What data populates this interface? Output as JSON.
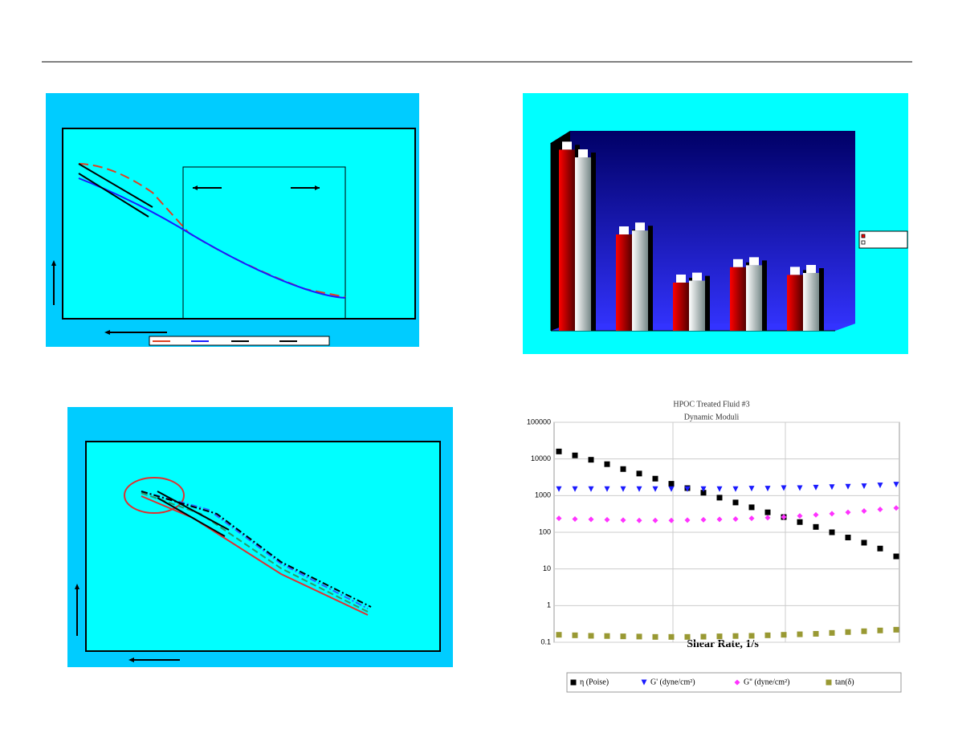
{
  "chart_data": [
    {
      "type": "bar3d",
      "categories": [
        null,
        null,
        null,
        null,
        null
      ],
      "series": [
        {
          "color": "#ff0000",
          "values": [
            4.7,
            2.5,
            1.25,
            1.65,
            1.45
          ]
        },
        {
          "color": "#ffffff",
          "values": [
            4.5,
            2.6,
            1.3,
            1.7,
            1.5
          ]
        }
      ],
      "ylim": [
        0,
        5
      ],
      "grid": true,
      "legend": "right"
    },
    {
      "type": "scatter",
      "title": "HPOC Treated Fluid #3",
      "subtitle": "Dynamic Moduli",
      "x_label": "Shear Rate, 1/s",
      "categories": [
        null,
        null,
        null,
        null,
        null,
        null,
        null,
        null,
        null,
        null,
        null,
        null,
        null,
        null,
        null,
        null,
        null,
        null,
        null,
        null,
        null,
        null
      ],
      "log": true,
      "ylim": [
        0.1,
        100000
      ],
      "yticks": [
        0.1,
        1,
        10,
        100,
        1000,
        10000,
        100000
      ],
      "grid": true,
      "legend": "bottom",
      "series": [
        {
          "name": "η (Poise)",
          "color": "#000000",
          "marker": "square",
          "values": [
            16000,
            12500,
            9500,
            7200,
            5300,
            4000,
            2900,
            2100,
            1600,
            1200,
            880,
            650,
            480,
            350,
            260,
            190,
            140,
            100,
            72,
            52,
            36,
            22
          ]
        },
        {
          "name": "G' (dyne/cm²)",
          "color": "#1a1aff",
          "marker": "triangle-down",
          "values": [
            1500,
            1500,
            1500,
            1500,
            1500,
            1500,
            1500,
            1500,
            1500,
            1500,
            1500,
            1500,
            1550,
            1550,
            1600,
            1600,
            1650,
            1700,
            1750,
            1800,
            1900,
            2000
          ]
        },
        {
          "name": "G'' (dyne/cm²)",
          "color": "#ff33ff",
          "marker": "diamond",
          "values": [
            240,
            230,
            225,
            220,
            215,
            210,
            210,
            210,
            215,
            220,
            225,
            230,
            240,
            250,
            260,
            280,
            300,
            320,
            350,
            380,
            420,
            460
          ]
        },
        {
          "name": "tan(δ)",
          "color": "#999933",
          "marker": "square",
          "values": [
            0.16,
            0.155,
            0.15,
            0.148,
            0.145,
            0.143,
            0.14,
            0.14,
            0.14,
            0.142,
            0.145,
            0.148,
            0.15,
            0.155,
            0.16,
            0.165,
            0.17,
            0.18,
            0.19,
            0.2,
            0.21,
            0.22
          ]
        }
      ]
    }
  ]
}
